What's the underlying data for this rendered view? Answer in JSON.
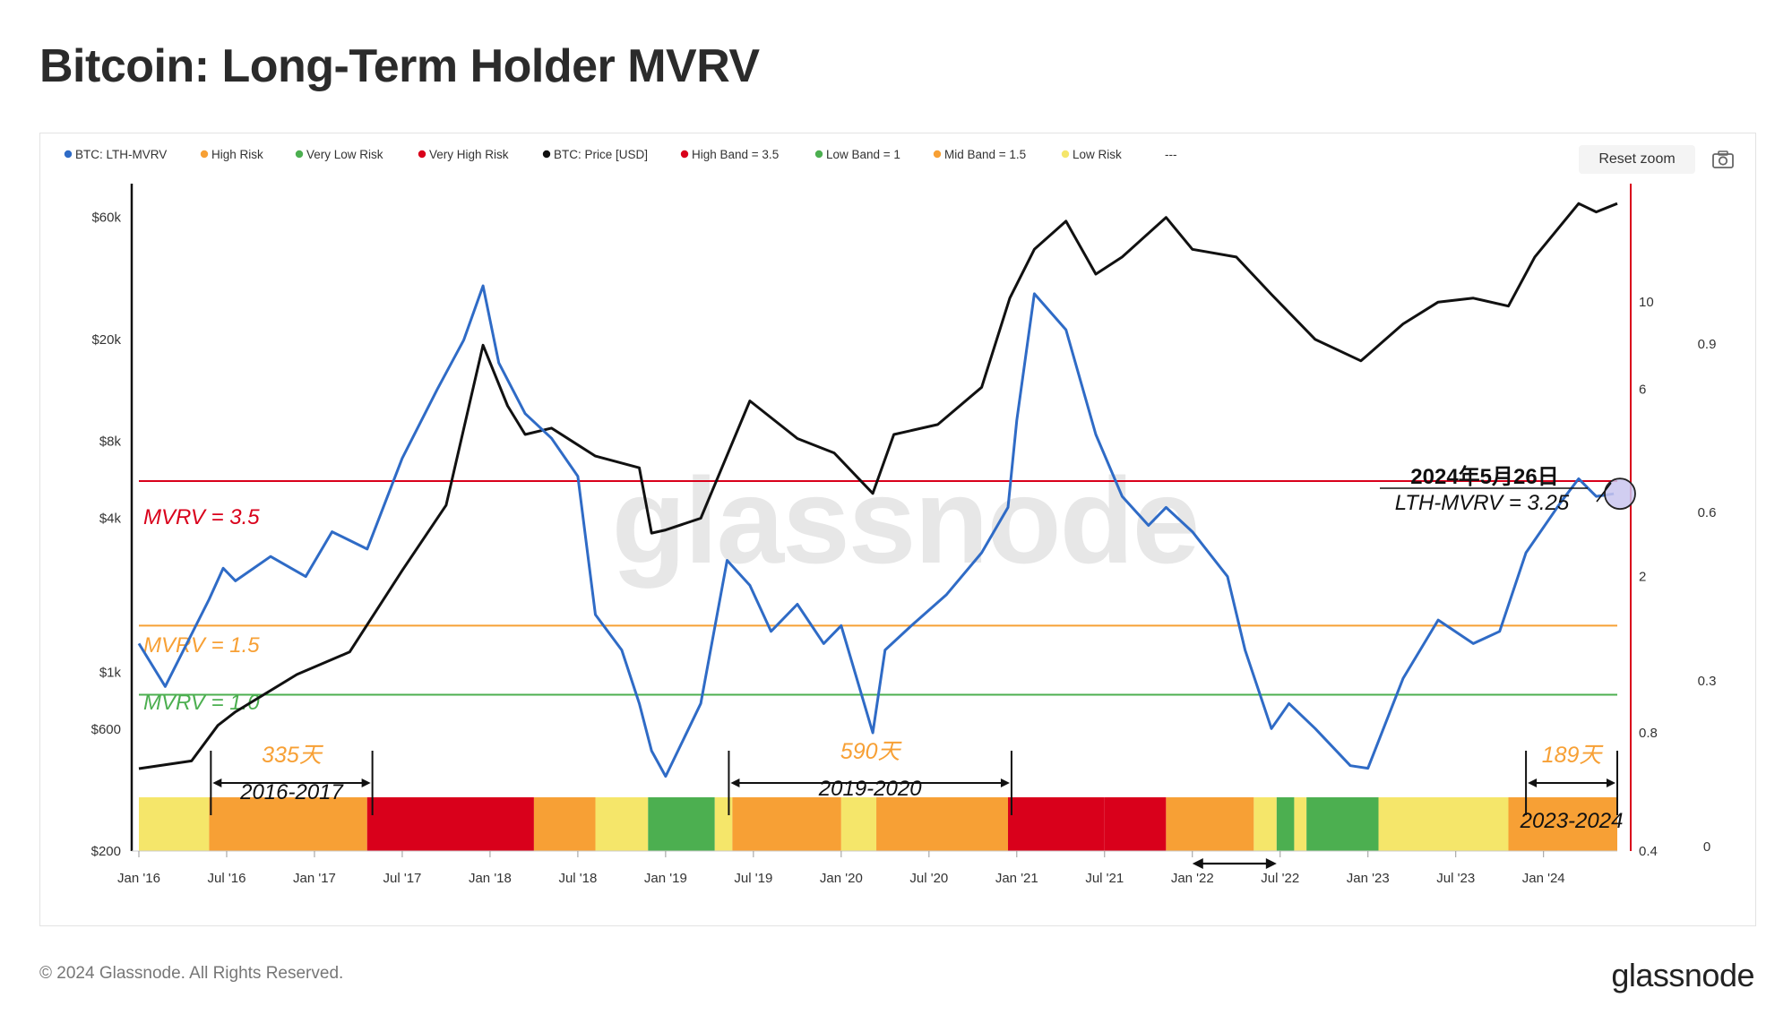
{
  "title": "Bitcoin: Long-Term Holder MVRV",
  "toolbar": {
    "reset_zoom": "Reset zoom"
  },
  "footer": {
    "copyright": "© 2024 Glassnode. All Rights Reserved.",
    "logo": "glassnode"
  },
  "watermark": "glassnode",
  "chart_data": {
    "type": "line",
    "title": "Bitcoin: Long-Term Holder MVRV",
    "legend": [
      {
        "label": "BTC: LTH-MVRV",
        "color": "#2f6bc6"
      },
      {
        "label": "High Risk",
        "color": "#f7a035"
      },
      {
        "label": "Very Low Risk",
        "color": "#4caf50"
      },
      {
        "label": "Very High Risk",
        "color": "#d9001b"
      },
      {
        "label": "BTC: Price [USD]",
        "color": "#111111"
      },
      {
        "label": "High Band = 3.5",
        "color": "#d9001b"
      },
      {
        "label": "Low Band = 1",
        "color": "#4caf50"
      },
      {
        "label": "Mid Band = 1.5",
        "color": "#f7a035"
      },
      {
        "label": "Low Risk",
        "color": "#f5e66a"
      },
      {
        "label": "---",
        "color": "#999999"
      }
    ],
    "x_ticks": [
      "Jan '16",
      "Jul '16",
      "Jan '17",
      "Jul '17",
      "Jan '18",
      "Jul '18",
      "Jan '19",
      "Jul '19",
      "Jan '20",
      "Jul '20",
      "Jan '21",
      "Jul '21",
      "Jan '22",
      "Jul '22",
      "Jan '23",
      "Jul '23",
      "Jan '24"
    ],
    "x_range": [
      2016.0,
      2024.42
    ],
    "price_axis": {
      "type": "log",
      "ticks": [
        "$200",
        "$600",
        "$1k",
        "$4k",
        "$8k",
        "$20k",
        "$60k"
      ],
      "range": [
        200,
        75000
      ]
    },
    "mvrv_axis": {
      "type": "log",
      "ticks": [
        "0.4",
        "0.8",
        "2",
        "6",
        "10"
      ],
      "range": [
        0.4,
        19
      ]
    },
    "right_axis_ticks": [
      "0",
      "0.3",
      "0.6",
      "0.9"
    ],
    "bands": [
      {
        "label": "MVRV = 3.5",
        "value": 3.5,
        "color": "#d9001b"
      },
      {
        "label": "MVRV = 1.5",
        "value": 1.5,
        "color": "#f7a035"
      },
      {
        "label": "MVRV = 1.0",
        "value": 1.0,
        "color": "#4caf50"
      }
    ],
    "series": [
      {
        "name": "BTC: LTH-MVRV",
        "color": "#2f6bc6",
        "x": [
          2016.0,
          2016.15,
          2016.4,
          2016.48,
          2016.55,
          2016.75,
          2016.95,
          2017.1,
          2017.3,
          2017.5,
          2017.7,
          2017.85,
          2017.96,
          2018.05,
          2018.2,
          2018.35,
          2018.5,
          2018.6,
          2018.75,
          2018.85,
          2018.92,
          2019.0,
          2019.2,
          2019.35,
          2019.48,
          2019.6,
          2019.75,
          2019.9,
          2020.0,
          2020.18,
          2020.25,
          2020.4,
          2020.6,
          2020.8,
          2020.95,
          2021.0,
          2021.1,
          2021.28,
          2021.45,
          2021.6,
          2021.75,
          2021.85,
          2022.0,
          2022.2,
          2022.3,
          2022.45,
          2022.55,
          2022.7,
          2022.9,
          2023.0,
          2023.2,
          2023.4,
          2023.6,
          2023.75,
          2023.9,
          2024.1,
          2024.2,
          2024.3,
          2024.4
        ],
        "y": [
          1.35,
          1.05,
          1.75,
          2.1,
          1.95,
          2.25,
          2.0,
          2.6,
          2.35,
          4.0,
          6.0,
          8.0,
          11.0,
          7.0,
          5.2,
          4.5,
          3.6,
          1.6,
          1.3,
          0.95,
          0.72,
          0.62,
          0.95,
          2.2,
          1.9,
          1.45,
          1.7,
          1.35,
          1.5,
          0.8,
          1.3,
          1.5,
          1.8,
          2.3,
          3.0,
          5.0,
          10.5,
          8.5,
          4.6,
          3.2,
          2.7,
          3.0,
          2.6,
          2.0,
          1.3,
          0.82,
          0.95,
          0.82,
          0.66,
          0.65,
          1.1,
          1.55,
          1.35,
          1.45,
          2.3,
          3.1,
          3.55,
          3.2,
          3.25
        ]
      },
      {
        "name": "BTC: Price [USD]",
        "color": "#111111",
        "x": [
          2016.0,
          2016.3,
          2016.45,
          2016.55,
          2016.9,
          2017.2,
          2017.5,
          2017.75,
          2017.96,
          2018.1,
          2018.2,
          2018.35,
          2018.6,
          2018.85,
          2018.92,
          2019.0,
          2019.2,
          2019.48,
          2019.75,
          2019.96,
          2020.18,
          2020.3,
          2020.55,
          2020.8,
          2020.96,
          2021.1,
          2021.28,
          2021.45,
          2021.6,
          2021.85,
          2022.0,
          2022.25,
          2022.45,
          2022.7,
          2022.96,
          2023.2,
          2023.4,
          2023.6,
          2023.8,
          2023.95,
          2024.2,
          2024.3,
          2024.42
        ],
        "y": [
          420,
          450,
          620,
          700,
          980,
          1200,
          2500,
          4500,
          19000,
          11000,
          8500,
          9000,
          7000,
          6300,
          3500,
          3600,
          4000,
          11500,
          8200,
          7200,
          5000,
          8500,
          9300,
          13000,
          29000,
          45000,
          58000,
          36000,
          42000,
          60000,
          45000,
          42000,
          30000,
          20000,
          16500,
          23000,
          28000,
          29000,
          27000,
          42000,
          68000,
          63000,
          68000
        ]
      }
    ],
    "risk_strip": [
      {
        "from": 2016.0,
        "to": 2016.4,
        "zone": "Low Risk"
      },
      {
        "from": 2016.4,
        "to": 2017.3,
        "zone": "High Risk"
      },
      {
        "from": 2017.3,
        "to": 2018.25,
        "zone": "Very High Risk"
      },
      {
        "from": 2018.25,
        "to": 2018.6,
        "zone": "High Risk"
      },
      {
        "from": 2018.6,
        "to": 2018.9,
        "zone": "Low Risk"
      },
      {
        "from": 2018.9,
        "to": 2019.28,
        "zone": "Very Low Risk"
      },
      {
        "from": 2019.28,
        "to": 2019.38,
        "zone": "Low Risk"
      },
      {
        "from": 2019.38,
        "to": 2020.0,
        "zone": "High Risk"
      },
      {
        "from": 2020.0,
        "to": 2020.2,
        "zone": "Low Risk"
      },
      {
        "from": 2020.2,
        "to": 2020.95,
        "zone": "High Risk"
      },
      {
        "from": 2020.95,
        "to": 2021.5,
        "zone": "Very High Risk"
      },
      {
        "from": 2021.5,
        "to": 2021.85,
        "zone": "Very High Risk"
      },
      {
        "from": 2021.85,
        "to": 2022.35,
        "zone": "High Risk"
      },
      {
        "from": 2022.35,
        "to": 2022.48,
        "zone": "Low Risk"
      },
      {
        "from": 2022.48,
        "to": 2022.58,
        "zone": "Very Low Risk"
      },
      {
        "from": 2022.58,
        "to": 2022.65,
        "zone": "Low Risk"
      },
      {
        "from": 2022.65,
        "to": 2023.06,
        "zone": "Very Low Risk"
      },
      {
        "from": 2023.06,
        "to": 2023.8,
        "zone": "Low Risk"
      },
      {
        "from": 2023.8,
        "to": 2024.42,
        "zone": "High Risk"
      }
    ],
    "annotations": {
      "point_date": "2024年5月26日",
      "point_value": "LTH-MVRV = 3.25",
      "spans": [
        {
          "days": "335天",
          "label": "2016-2017",
          "from": 2016.41,
          "to": 2017.33
        },
        {
          "days": "590天",
          "label": "2019-2020",
          "from": 2019.36,
          "to": 2020.97
        },
        {
          "days": "189天",
          "label": "2023-2024",
          "from": 2023.9,
          "to": 2024.42
        }
      ],
      "marker_range": [
        2022.0,
        2022.48
      ]
    }
  }
}
